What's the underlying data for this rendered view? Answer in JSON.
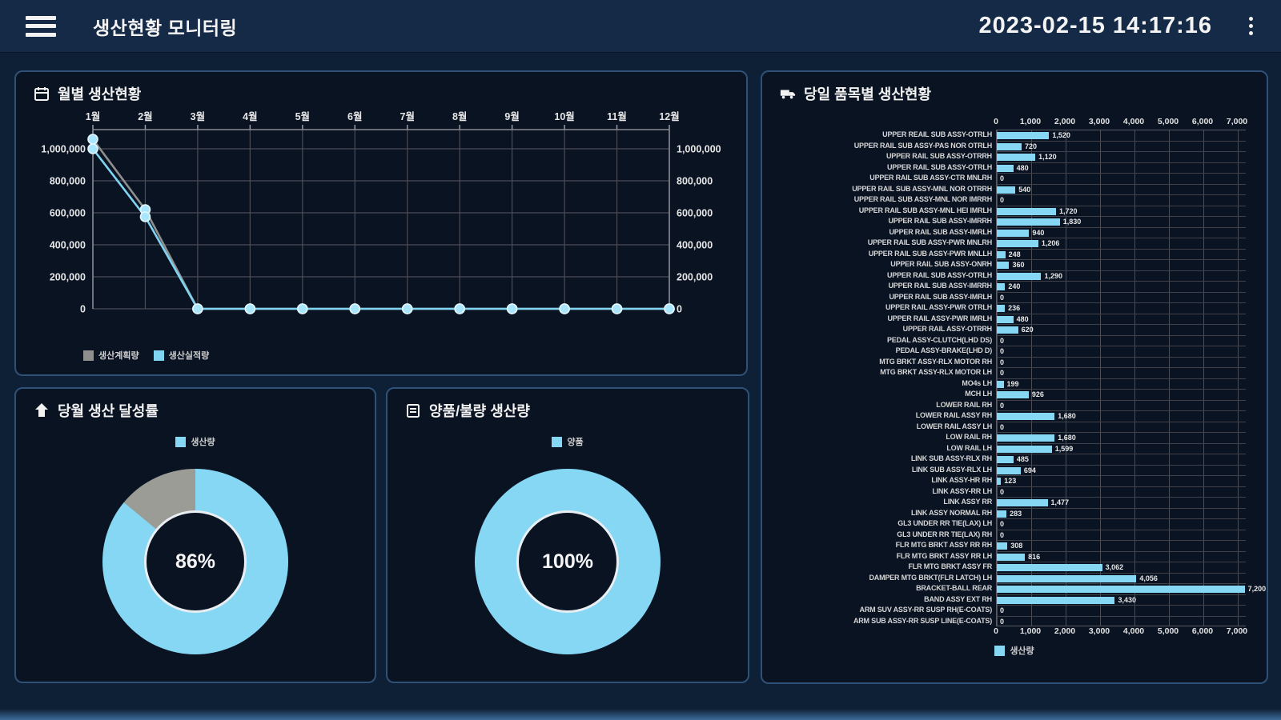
{
  "header": {
    "title": "생산현황 모니터링",
    "datetime": "2023-02-15 14:17:16",
    "menu_icon": "hamburger-icon",
    "more_icon": "kebab-menu-icon"
  },
  "colors": {
    "accent_cyan": "#86d7f4",
    "plan_gray": "#8e8e8e",
    "panel_border": "#2f5178",
    "panel_bg": "#0a1322",
    "header_bg": "#152a47",
    "page_bg": "#0e2036",
    "grid_line": "#4c4c55"
  },
  "panels": {
    "monthly": {
      "title": "월별 생산현황",
      "icon": "calendar-icon"
    },
    "achievement": {
      "title": "당월 생산 달성률",
      "icon": "arrow-up-icon",
      "legend": "생산량",
      "center_text": "86%"
    },
    "quality": {
      "title": "양품/불량 생산량",
      "icon": "clipboard-icon",
      "legend": "양품",
      "center_text": "100%"
    },
    "items": {
      "title": "당일 품목별 생산현황",
      "icon": "truck-icon",
      "legend": "생산량"
    }
  },
  "chart_data": [
    {
      "id": "monthly-line",
      "type": "line",
      "title": "월별 생산현황",
      "categories": [
        "1월",
        "2월",
        "3월",
        "4월",
        "5월",
        "6월",
        "7월",
        "8월",
        "9월",
        "10월",
        "11월",
        "12월"
      ],
      "series": [
        {
          "name": "생산계획량",
          "color": "#8e8e8e",
          "values": [
            1060000,
            620000,
            0,
            0,
            0,
            0,
            0,
            0,
            0,
            0,
            0,
            0
          ]
        },
        {
          "name": "생산실적량",
          "color": "#7fd4f2",
          "values": [
            1000000,
            575000,
            0,
            0,
            0,
            0,
            0,
            0,
            0,
            0,
            0,
            0
          ]
        }
      ],
      "y_ticks": [
        0,
        200000,
        400000,
        600000,
        800000,
        1000000
      ],
      "ylim": [
        0,
        1120000
      ],
      "grid": true,
      "legend_position": "bottom-left",
      "dual_y_axis": true
    },
    {
      "id": "achievement-donut",
      "type": "pie",
      "title": "당월 생산 달성률",
      "center_label": "86%",
      "values": [
        86,
        14
      ],
      "colors": [
        "#86d7f4",
        "#9c9c96"
      ],
      "legend": [
        "생산량"
      ]
    },
    {
      "id": "quality-donut",
      "type": "pie",
      "title": "양품/불량 생산량",
      "center_label": "100%",
      "values": [
        100
      ],
      "colors": [
        "#86d7f4"
      ],
      "legend": [
        "양품"
      ]
    },
    {
      "id": "items-bar",
      "type": "bar",
      "orientation": "horizontal",
      "title": "당일 품목별 생산현황",
      "x_ticks": [
        0,
        1000,
        2000,
        3000,
        4000,
        5000,
        6000,
        7000
      ],
      "xlim": [
        0,
        7200
      ],
      "color": "#86d7f4",
      "legend": [
        "생산량"
      ],
      "items": [
        {
          "label": "UPPER REAIL SUB ASSY-OTRLH",
          "value": 1520
        },
        {
          "label": "UPPER RAIL SUB ASSY-PAS NOR OTRLH",
          "value": 720
        },
        {
          "label": "UPPER RAIL SUB ASSY-OTRRH",
          "value": 1120
        },
        {
          "label": "UPPER RAIL SUB ASSY-OTRLH",
          "value": 480
        },
        {
          "label": "UPPER RAIL SUB ASSY-CTR MNLRH",
          "value": 0
        },
        {
          "label": "UPPER RAIL SUB ASSY-MNL NOR OTRRH",
          "value": 540
        },
        {
          "label": "UPPER RAIL SUB ASSY-MNL NOR IMRRH",
          "value": 0
        },
        {
          "label": "UPPER RAIL SUB ASSY-MNL HEI IMRLH",
          "value": 1720
        },
        {
          "label": "UPPER RAIL SUB ASSY-IMRRH",
          "value": 1830
        },
        {
          "label": "UPPER RAIL SUB ASSY-IMRLH",
          "value": 940
        },
        {
          "label": "UPPER RAIL SUB ASSY-PWR MNLRH",
          "value": 1206
        },
        {
          "label": "UPPER RAIL SUB ASSY-PWR MNLLH",
          "value": 248
        },
        {
          "label": "UPPER RAIL SUB ASSY-ONRH",
          "value": 360
        },
        {
          "label": "UPPER RAIL SUB ASSY-OTRLH",
          "value": 1290
        },
        {
          "label": "UPPER RAIL SUB ASSY-IMRRH",
          "value": 240
        },
        {
          "label": "UPPER RAIL SUB ASSY-IMRLH",
          "value": 0
        },
        {
          "label": "UPPER RAIL ASSY-PWR OTRLH",
          "value": 236
        },
        {
          "label": "UPPER RAIL ASSY-PWR IMRLH",
          "value": 480
        },
        {
          "label": "UPPER RAIL ASSY-OTRRH",
          "value": 620
        },
        {
          "label": "PEDAL ASSY-CLUTCH(LHD DS)",
          "value": 0
        },
        {
          "label": "PEDAL ASSY-BRAKE(LHD D)",
          "value": 0
        },
        {
          "label": "MTG BRKT ASSY-RLX MOTOR RH",
          "value": 0
        },
        {
          "label": "MTG BRKT ASSY-RLX MOTOR LH",
          "value": 0
        },
        {
          "label": "MO4s LH",
          "value": 199
        },
        {
          "label": "MCH LH",
          "value": 926
        },
        {
          "label": "LOWER RAIL RH",
          "value": 0
        },
        {
          "label": "LOWER RAIL ASSY RH",
          "value": 1680
        },
        {
          "label": "LOWER RAIL ASSY LH",
          "value": 0
        },
        {
          "label": "LOW RAIL RH",
          "value": 1680
        },
        {
          "label": "LOW RAIL LH",
          "value": 1599
        },
        {
          "label": "LINK SUB ASSY-RLX RH",
          "value": 485
        },
        {
          "label": "LINK SUB ASSY-RLX LH",
          "value": 694
        },
        {
          "label": "LINK ASSY-HR RH",
          "value": 123
        },
        {
          "label": "LINK ASSY-RR LH",
          "value": 0
        },
        {
          "label": "LINK ASSY RR",
          "value": 1477
        },
        {
          "label": "LINK ASSY NORMAL RH",
          "value": 283
        },
        {
          "label": "GL3 UNDER RR TIE(LAX) LH",
          "value": 0
        },
        {
          "label": "GL3 UNDER RR TIE(LAX) RH",
          "value": 0
        },
        {
          "label": "FLR MTG BRKT ASSY RR RH",
          "value": 308
        },
        {
          "label": "FLR MTG BRKT ASSY RR LH",
          "value": 816
        },
        {
          "label": "FLR MTG BRKT ASSY FR",
          "value": 3062
        },
        {
          "label": "DAMPER MTG BRKT(FLR LATCH) LH",
          "value": 4056
        },
        {
          "label": "BRACKET-BALL REAR",
          "value": 7200
        },
        {
          "label": "BAND ASSY EXT RH",
          "value": 3430
        },
        {
          "label": "ARM SUV ASSY-RR SUSP RH(E-COATS)",
          "value": 0
        },
        {
          "label": "ARM SUB ASSY-RR SUSP LINE(E-COATS)",
          "value": 0
        }
      ]
    }
  ]
}
